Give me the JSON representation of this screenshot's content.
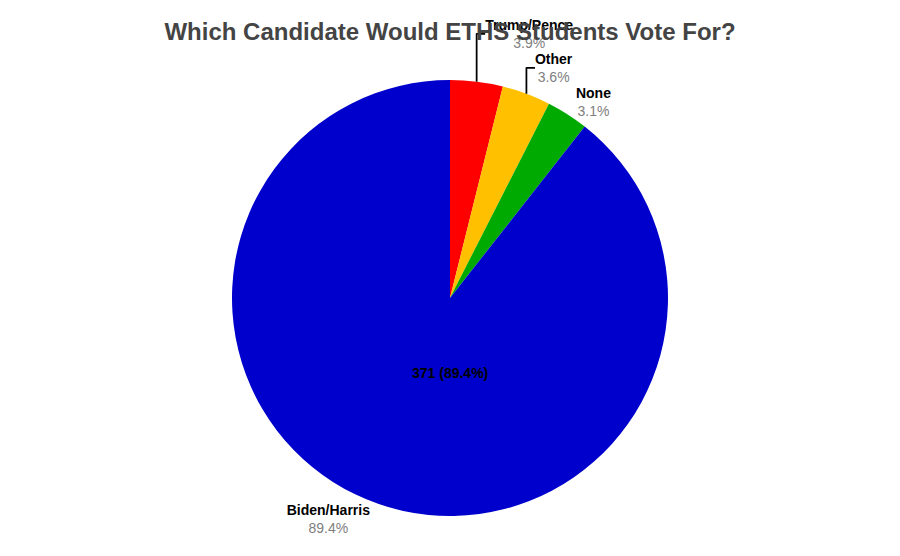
{
  "chart_data": {
    "type": "pie",
    "title": "Which Candidate Would ETHS Students Vote For?",
    "categories": [
      "Trump/Pence",
      "Other",
      "None",
      "Biden/Harris"
    ],
    "values": [
      3.9,
      3.6,
      3.1,
      89.4
    ],
    "value_labels": [
      "3.9%",
      "3.6%",
      "3.1%",
      "89.4%"
    ],
    "colors": [
      "#ff0000",
      "#ffc000",
      "#00aa00",
      "#0000cc"
    ],
    "data_labels": true,
    "annotations": [
      {
        "category": "Biden/Harris",
        "text": "371 (89.4%)"
      }
    ]
  }
}
